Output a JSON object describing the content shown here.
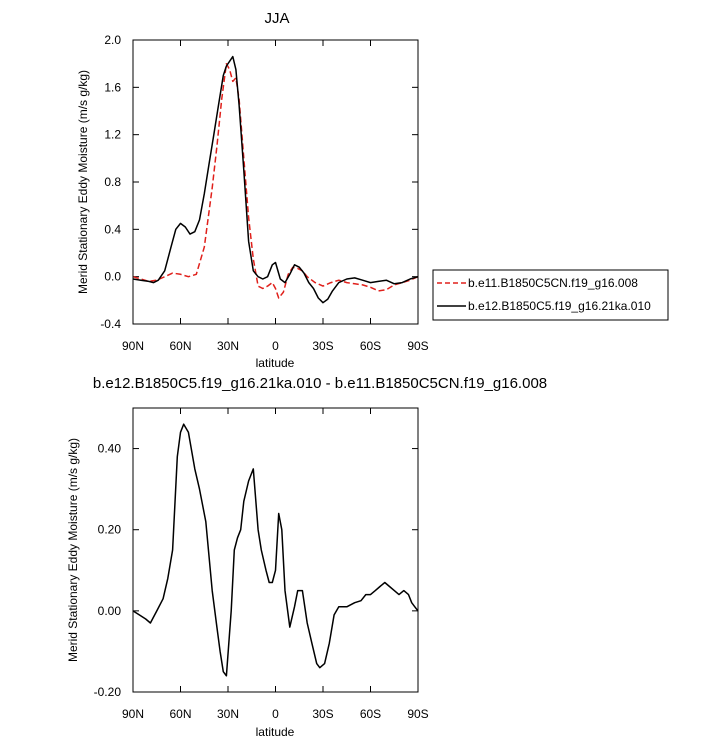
{
  "chart_data": [
    {
      "type": "line",
      "title": "JJA",
      "xlabel": "latitude",
      "ylabel": "Merid Stationary Eddy Moisture (m/s g/kg)",
      "xlim": [
        -90,
        90
      ],
      "ylim": [
        -0.4,
        2.0
      ],
      "x_ticks": [
        -90,
        -60,
        -30,
        0,
        30,
        60,
        90
      ],
      "x_tick_labels": [
        "90N",
        "60N",
        "30N",
        "0",
        "30S",
        "60S",
        "90S"
      ],
      "y_ticks": [
        -0.4,
        0.0,
        0.4,
        0.8,
        1.2,
        1.6,
        2.0
      ],
      "y_tick_labels": [
        "-0.4",
        "0.0",
        "0.4",
        "0.8",
        "1.2",
        "1.6",
        "2.0"
      ],
      "grid": false,
      "legend_position": "right",
      "series": [
        {
          "name": "b.e11.B1850C5CN.f19_g16.008",
          "color": "#e0201b",
          "dash": "dashed",
          "x": [
            -90,
            -85,
            -80,
            -75,
            -70,
            -65,
            -60,
            -55,
            -50,
            -45,
            -40,
            -37,
            -34,
            -31,
            -29,
            -27,
            -25,
            -23,
            -20,
            -17,
            -14,
            -11,
            -8,
            -5,
            -2,
            0,
            2,
            5,
            8,
            11,
            14,
            17,
            20,
            25,
            30,
            35,
            40,
            45,
            50,
            55,
            60,
            65,
            70,
            75,
            80,
            85,
            90
          ],
          "y": [
            0.0,
            -0.02,
            -0.04,
            -0.03,
            0.0,
            0.03,
            0.02,
            0.0,
            0.02,
            0.25,
            0.75,
            1.1,
            1.5,
            1.8,
            1.75,
            1.65,
            1.68,
            1.5,
            1.0,
            0.5,
            0.15,
            -0.08,
            -0.1,
            -0.08,
            -0.05,
            -0.1,
            -0.18,
            -0.13,
            0.02,
            0.08,
            0.07,
            0.05,
            0.0,
            -0.05,
            -0.08,
            -0.05,
            -0.03,
            -0.05,
            -0.06,
            -0.07,
            -0.09,
            -0.12,
            -0.11,
            -0.07,
            -0.05,
            -0.03,
            0.0
          ]
        },
        {
          "name": "b.e12.B1850C5.f19_g16.21ka.010",
          "color": "#000000",
          "dash": "solid",
          "x": [
            -90,
            -85,
            -80,
            -77,
            -74,
            -70,
            -66,
            -63,
            -60,
            -57,
            -54,
            -51,
            -48,
            -45,
            -42,
            -39,
            -36,
            -33,
            -31,
            -29,
            -27,
            -25,
            -23,
            -20,
            -17,
            -14,
            -11,
            -8,
            -5,
            -2,
            0,
            3,
            6,
            9,
            12,
            15,
            18,
            21,
            24,
            27,
            30,
            33,
            36,
            40,
            45,
            50,
            55,
            60,
            65,
            70,
            75,
            80,
            85,
            90
          ],
          "y": [
            -0.02,
            -0.03,
            -0.04,
            -0.05,
            -0.03,
            0.05,
            0.25,
            0.4,
            0.45,
            0.42,
            0.36,
            0.38,
            0.48,
            0.7,
            0.95,
            1.2,
            1.45,
            1.7,
            1.78,
            1.82,
            1.86,
            1.75,
            1.45,
            0.9,
            0.3,
            0.05,
            0.0,
            -0.02,
            0.0,
            0.1,
            0.12,
            -0.02,
            -0.05,
            0.02,
            0.1,
            0.08,
            0.03,
            -0.05,
            -0.1,
            -0.18,
            -0.22,
            -0.19,
            -0.12,
            -0.05,
            -0.02,
            -0.01,
            -0.03,
            -0.05,
            -0.04,
            -0.03,
            -0.06,
            -0.05,
            -0.02,
            0.0
          ]
        }
      ]
    },
    {
      "type": "line",
      "title": "b.e12.B1850C5.f19_g16.21ka.010 - b.e11.B1850C5CN.f19_g16.008",
      "xlabel": "latitude",
      "ylabel": "Merid Stationary Eddy Moisture (m/s g/kg)",
      "xlim": [
        -90,
        90
      ],
      "ylim": [
        -0.2,
        0.5
      ],
      "x_ticks": [
        -90,
        -60,
        -30,
        0,
        30,
        60,
        90
      ],
      "x_tick_labels": [
        "90N",
        "60N",
        "30N",
        "0",
        "30S",
        "60S",
        "90S"
      ],
      "y_ticks": [
        -0.2,
        0.0,
        0.2,
        0.4
      ],
      "y_tick_labels": [
        "-0.20",
        "0.00",
        "0.20",
        "0.40"
      ],
      "grid": false,
      "series": [
        {
          "color": "#000000",
          "dash": "solid",
          "x": [
            -90,
            -86,
            -82,
            -79,
            -75,
            -71,
            -68,
            -65,
            -62,
            -60,
            -58,
            -55,
            -51,
            -48,
            -44,
            -40,
            -37,
            -35,
            -33,
            -31,
            -28,
            -26,
            -24,
            -22,
            -20,
            -17,
            -14,
            -11,
            -9,
            -6,
            -4,
            -2,
            0,
            2,
            4,
            6,
            9,
            12,
            14,
            17,
            20,
            23,
            26,
            28,
            31,
            34,
            37,
            40,
            45,
            50,
            54,
            57,
            60,
            63,
            66,
            69,
            72,
            75,
            78,
            81,
            84,
            86,
            88,
            90
          ],
          "y": [
            0.0,
            -0.01,
            -0.02,
            -0.03,
            0.0,
            0.03,
            0.08,
            0.15,
            0.38,
            0.44,
            0.46,
            0.44,
            0.35,
            0.3,
            0.22,
            0.05,
            -0.04,
            -0.1,
            -0.15,
            -0.16,
            0.0,
            0.15,
            0.18,
            0.2,
            0.27,
            0.32,
            0.35,
            0.2,
            0.15,
            0.1,
            0.07,
            0.07,
            0.1,
            0.24,
            0.2,
            0.05,
            -0.04,
            0.01,
            0.05,
            0.05,
            -0.03,
            -0.08,
            -0.13,
            -0.14,
            -0.13,
            -0.08,
            -0.01,
            0.01,
            0.01,
            0.02,
            0.025,
            0.04,
            0.04,
            0.05,
            0.06,
            0.07,
            0.06,
            0.05,
            0.04,
            0.05,
            0.04,
            0.02,
            0.01,
            0.0
          ]
        }
      ]
    }
  ]
}
